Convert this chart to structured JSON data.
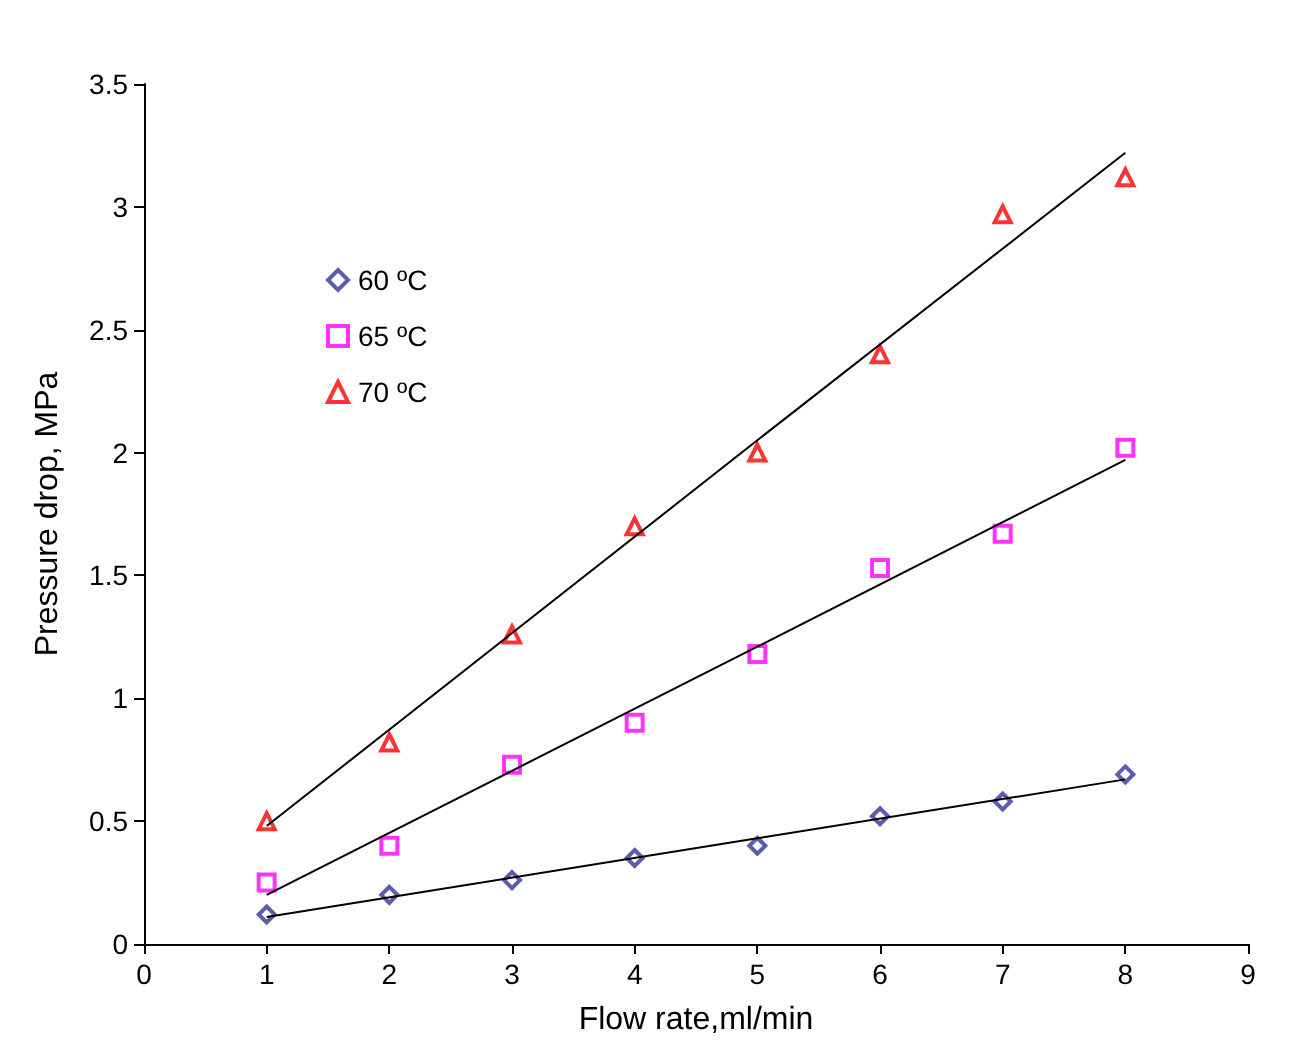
{
  "chart_data": {
    "type": "scatter",
    "xlabel": "Flow rate,ml/min",
    "ylabel": "Pressure drop, MPa",
    "xlim": [
      0,
      9
    ],
    "xticks": [
      0,
      1,
      2,
      3,
      4,
      5,
      6,
      7,
      8,
      9
    ],
    "ylim": [
      0,
      3.5
    ],
    "yticks": [
      0,
      0.5,
      1,
      1.5,
      2,
      2.5,
      3,
      3.5
    ],
    "grid": false,
    "legend": "top left",
    "x": [
      1,
      2,
      3,
      4,
      5,
      6,
      7,
      8
    ],
    "series": [
      {
        "name": "60 ºC",
        "color": "#333399",
        "marker": "diamond",
        "values": [
          0.12,
          0.2,
          0.26,
          0.35,
          0.4,
          0.52,
          0.58,
          0.69
        ]
      },
      {
        "name": "65 ºC",
        "color": "#ff00ff",
        "marker": "square",
        "values": [
          0.25,
          0.4,
          0.73,
          0.9,
          1.18,
          1.53,
          1.67,
          2.02
        ]
      },
      {
        "name": "70 ºC",
        "color": "#ff0000",
        "marker": "triangle",
        "values": [
          0.5,
          0.82,
          1.26,
          1.7,
          2.0,
          2.4,
          2.97,
          3.12
        ]
      },
      {
        "type": "line",
        "color": "#000000",
        "marker": "none",
        "x": [
          1,
          5,
          8
        ],
        "values": [
          0.11,
          0.43,
          0.67
        ]
      },
      {
        "type": "line",
        "color": "#000000",
        "marker": "none",
        "x": [
          1,
          5,
          8
        ],
        "values": [
          0.2,
          1.21,
          1.97
        ]
      },
      {
        "type": "line",
        "color": "#000000",
        "marker": "none",
        "x": [
          1,
          5,
          8
        ],
        "values": [
          0.48,
          2.05,
          3.22
        ]
      }
    ]
  }
}
